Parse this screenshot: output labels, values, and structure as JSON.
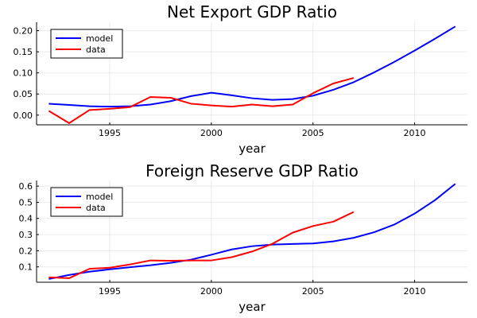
{
  "chart_data": [
    {
      "type": "line",
      "title": "Net Export GDP Ratio",
      "xlabel": "year",
      "ylabel": "",
      "xlim": [
        1991.4,
        2012.6
      ],
      "ylim": [
        -0.023,
        0.22
      ],
      "xticks": [
        1995,
        2000,
        2005,
        2010
      ],
      "yticks": [
        0.0,
        0.05,
        0.1,
        0.15,
        0.2
      ],
      "ytick_labels": [
        "0.00",
        "0.05",
        "0.10",
        "0.15",
        "0.20"
      ],
      "grid": true,
      "legend": "top-left",
      "series": [
        {
          "name": "model",
          "color": "#0000ff",
          "x": [
            1992,
            1993,
            1994,
            1995,
            1996,
            1997,
            1998,
            1999,
            2000,
            2001,
            2002,
            2003,
            2004,
            2005,
            2006,
            2007,
            2008,
            2009,
            2010,
            2011,
            2012
          ],
          "values": [
            0.027,
            0.024,
            0.021,
            0.02,
            0.021,
            0.025,
            0.033,
            0.045,
            0.053,
            0.047,
            0.04,
            0.036,
            0.038,
            0.046,
            0.06,
            0.078,
            0.101,
            0.126,
            0.153,
            0.181,
            0.21
          ]
        },
        {
          "name": "data",
          "color": "#ff0000",
          "x": [
            1992,
            1993,
            1994,
            1995,
            1996,
            1997,
            1998,
            1999,
            2000,
            2001,
            2002,
            2003,
            2004,
            2005,
            2006,
            2007
          ],
          "values": [
            0.01,
            -0.019,
            0.012,
            0.015,
            0.019,
            0.043,
            0.041,
            0.027,
            0.023,
            0.02,
            0.025,
            0.021,
            0.025,
            0.052,
            0.075,
            0.088
          ]
        }
      ]
    },
    {
      "type": "line",
      "title": "Foreign Reserve GDP Ratio",
      "xlabel": "year",
      "ylabel": "",
      "xlim": [
        1991.4,
        2012.6
      ],
      "ylim": [
        0.005,
        0.635
      ],
      "xticks": [
        1995,
        2000,
        2005,
        2010
      ],
      "yticks": [
        0.1,
        0.2,
        0.3,
        0.4,
        0.5,
        0.6
      ],
      "ytick_labels": [
        "0.1",
        "0.2",
        "0.3",
        "0.4",
        "0.5",
        "0.6"
      ],
      "grid": true,
      "legend": "top-left",
      "series": [
        {
          "name": "model",
          "color": "#0000ff",
          "x": [
            1992,
            1993,
            1994,
            1995,
            1996,
            1997,
            1998,
            1999,
            2000,
            2001,
            2002,
            2003,
            2004,
            2005,
            2006,
            2007,
            2008,
            2009,
            2010,
            2011,
            2012
          ],
          "values": [
            0.025,
            0.05,
            0.07,
            0.085,
            0.098,
            0.11,
            0.125,
            0.145,
            0.175,
            0.208,
            0.228,
            0.238,
            0.242,
            0.245,
            0.258,
            0.28,
            0.314,
            0.362,
            0.43,
            0.513,
            0.614
          ]
        },
        {
          "name": "data",
          "color": "#ff0000",
          "x": [
            1992,
            1993,
            1994,
            1995,
            1996,
            1997,
            1998,
            1999,
            2000,
            2001,
            2002,
            2003,
            2004,
            2005,
            2006,
            2007
          ],
          "values": [
            0.035,
            0.03,
            0.088,
            0.095,
            0.115,
            0.14,
            0.138,
            0.14,
            0.14,
            0.16,
            0.195,
            0.243,
            0.312,
            0.353,
            0.38,
            0.44
          ]
        }
      ]
    }
  ]
}
